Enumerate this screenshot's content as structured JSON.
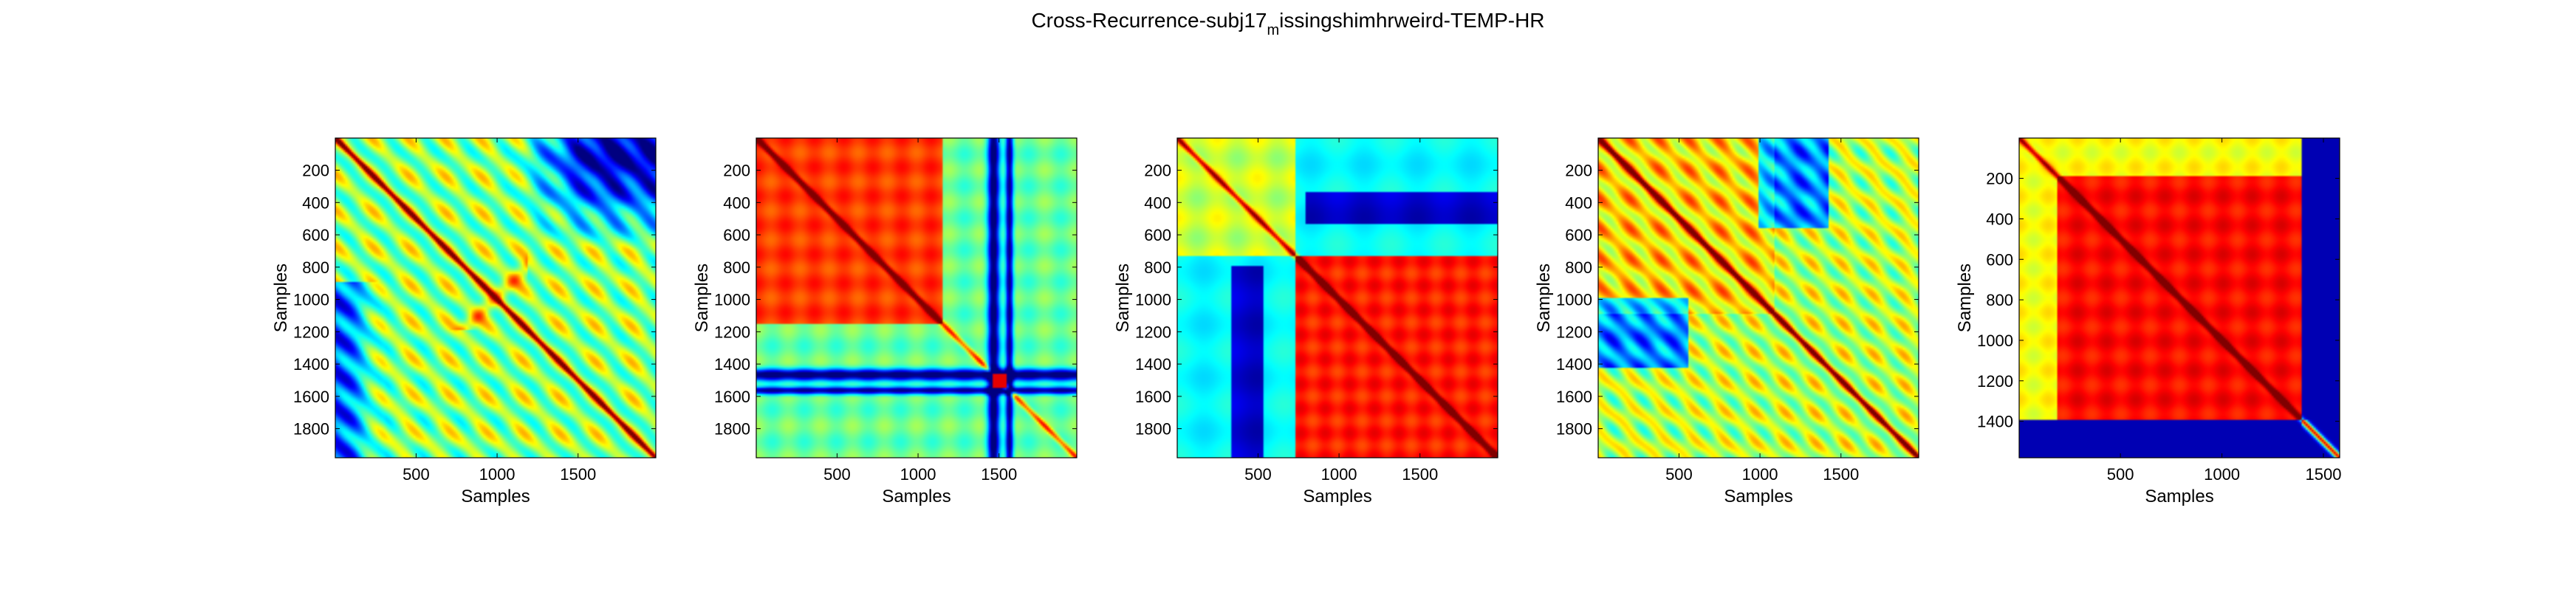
{
  "figure": {
    "title_prefix": "Cross-Recurrence-subj17",
    "title_subscript": "m",
    "title_suffix": "issingshimhrweird-TEMP-HR"
  },
  "chart_data": [
    {
      "type": "heatmap",
      "colormap": "jet",
      "xlabel": "Samples",
      "ylabel": "Samples",
      "xlim": [
        1,
        1980
      ],
      "ylim": [
        1,
        1980
      ],
      "xticks": [
        500,
        1000,
        1500
      ],
      "yticks": [
        200,
        400,
        600,
        800,
        1000,
        1200,
        1400,
        1600,
        1800
      ],
      "y_reversed": true,
      "pattern": "diagonal recurrence with low-recurrence upper-right corner"
    },
    {
      "type": "heatmap",
      "colormap": "jet",
      "xlabel": "Samples",
      "ylabel": "Samples",
      "xlim": [
        1,
        1980
      ],
      "ylim": [
        1,
        1980
      ],
      "xticks": [
        500,
        1000,
        1500
      ],
      "yticks": [
        200,
        400,
        600,
        800,
        1000,
        1200,
        1400,
        1600,
        1800
      ],
      "y_reversed": true,
      "pattern": "high recurrence block 0-1150 with blue bands near 1400-1500"
    },
    {
      "type": "heatmap",
      "colormap": "jet",
      "xlabel": "Samples",
      "ylabel": "Samples",
      "xlim": [
        1,
        1980
      ],
      "ylim": [
        1,
        1980
      ],
      "xticks": [
        500,
        1000,
        1500
      ],
      "yticks": [
        200,
        400,
        600,
        800,
        1000,
        1200,
        1400,
        1600,
        1800
      ],
      "y_reversed": true,
      "pattern": "high recurrence block 750-1980"
    },
    {
      "type": "heatmap",
      "colormap": "jet",
      "xlabel": "Samples",
      "ylabel": "Samples",
      "xlim": [
        1,
        1980
      ],
      "ylim": [
        1,
        1980
      ],
      "xticks": [
        500,
        1000,
        1500
      ],
      "yticks": [
        200,
        400,
        600,
        800,
        1000,
        1200,
        1400,
        1600,
        1800
      ],
      "y_reversed": true,
      "pattern": "diagonal recurrence with medium off-diagonal texture"
    },
    {
      "type": "heatmap",
      "colormap": "jet",
      "xlabel": "Samples",
      "ylabel": "Samples",
      "xlim": [
        1,
        1580
      ],
      "ylim": [
        1,
        1580
      ],
      "xticks": [
        500,
        1000,
        1500
      ],
      "yticks": [
        200,
        400,
        600,
        800,
        1000,
        1200,
        1400
      ],
      "y_reversed": true,
      "pattern": "high recurrence block 0-1390 with low border region"
    }
  ]
}
